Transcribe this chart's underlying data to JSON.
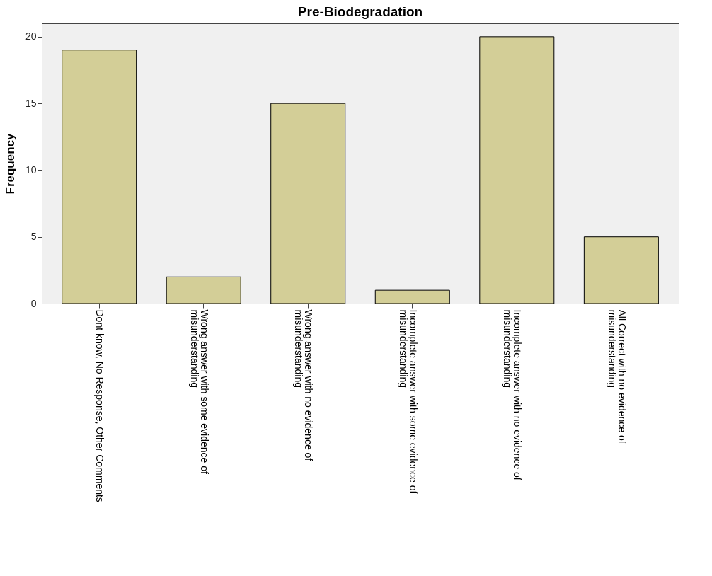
{
  "chart_data": {
    "type": "bar",
    "title": "Pre-Biodegradation",
    "ylabel": "Frequency",
    "categories": [
      "Dont know, No Response, Other Comments",
      "Wrong answer with some evidence of\nmisunderstanding",
      "Wrong answer with no evidence of\nmisunderstanding",
      "Incomplete answer with some evidence of\nmisunderstanding",
      "Incomplete answer with no evidence of\nmisunderstanding",
      "All Correct with no evidence of\nmisunderstanding"
    ],
    "values": [
      19,
      2,
      15,
      1,
      20,
      5
    ],
    "color": "#d3ce97",
    "ylim": [
      0,
      21
    ],
    "yticks": [
      0,
      5,
      10,
      15,
      20
    ],
    "grid": false
  }
}
